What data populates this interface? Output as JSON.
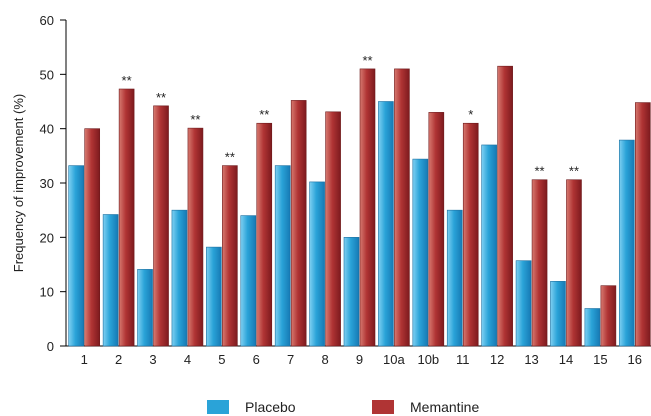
{
  "chart_data": {
    "type": "bar",
    "title": "",
    "xlabel": "",
    "ylabel": "Frequency of improvement (%)",
    "ylim": [
      0,
      60
    ],
    "yticks": [
      0,
      10,
      20,
      30,
      40,
      50,
      60
    ],
    "grid": false,
    "legend_position": "bottom-center",
    "categories": [
      "1",
      "2",
      "3",
      "4",
      "5",
      "6",
      "7",
      "8",
      "9",
      "10a",
      "10b",
      "11",
      "12",
      "13",
      "14",
      "15",
      "16"
    ],
    "series": [
      {
        "name": "Placebo",
        "color": "#2aa3d8",
        "values": [
          33.2,
          24.2,
          14.1,
          25.0,
          18.2,
          24.0,
          33.2,
          30.2,
          20.0,
          45.0,
          34.4,
          25.0,
          37.0,
          15.7,
          11.9,
          6.9,
          37.9
        ]
      },
      {
        "name": "Memantine",
        "color": "#b03434",
        "values": [
          40.0,
          47.3,
          44.2,
          40.1,
          33.2,
          41.0,
          45.2,
          43.1,
          51.0,
          51.0,
          43.0,
          41.0,
          51.5,
          30.6,
          30.6,
          11.1,
          44.8
        ]
      }
    ],
    "annotations": [
      "",
      "**",
      "**",
      "**",
      "**",
      "**",
      "",
      "",
      "**",
      "",
      "",
      "*",
      "",
      "**",
      "**",
      "",
      ""
    ]
  }
}
